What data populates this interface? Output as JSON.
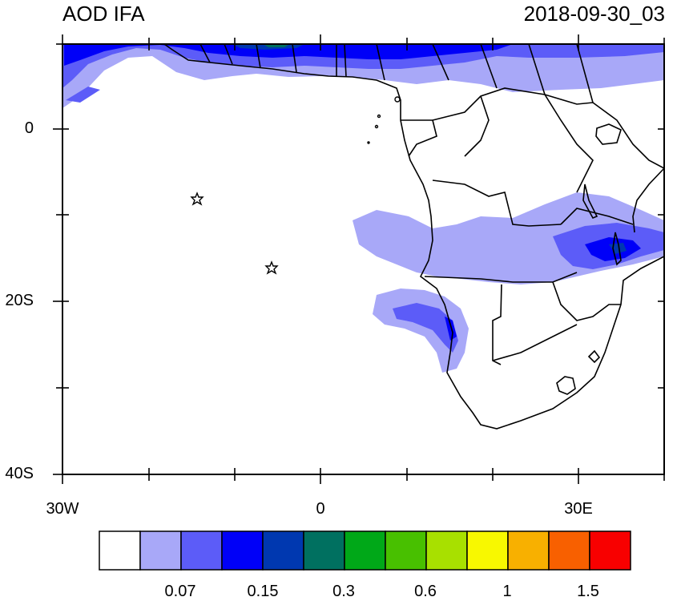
{
  "title": "AOD IFA",
  "timestamp": "2018-09-30_03",
  "lat_labels": [
    "0",
    "20S",
    "40S"
  ],
  "lon_labels": [
    "30W",
    "0",
    "30E"
  ],
  "colorbar": {
    "colors": [
      "#ffffff",
      "#a8a8f8",
      "#5c5cf8",
      "#0000f8",
      "#0038b0",
      "#007060",
      "#00a818",
      "#48c000",
      "#a8e000",
      "#f8f800",
      "#f8b000",
      "#f86000",
      "#f80000"
    ],
    "labels": [
      "0.07",
      "0.15",
      "0.3",
      "0.6",
      "1",
      "1.5"
    ]
  },
  "markers": [
    "star-marker",
    "star-marker"
  ]
}
